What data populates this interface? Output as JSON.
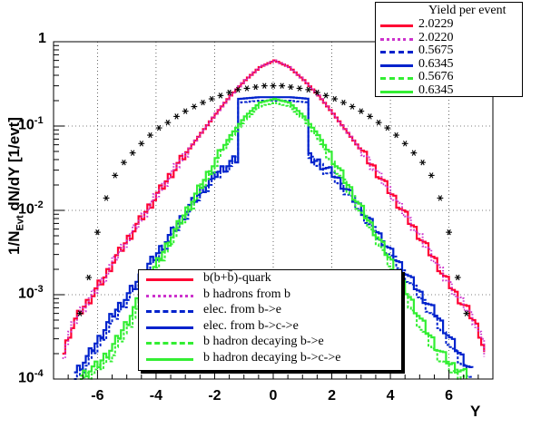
{
  "chart_data": {
    "type": "line",
    "xlabel": "Y",
    "ylabel_main": "1/N",
    "ylabel_sub": "Evt",
    "ylabel_rest": " dN/dY [1/evt]",
    "xlim": [
      -7.5,
      7.5
    ],
    "ylim": [
      0.0001,
      1
    ],
    "yscale": "log",
    "grid": true,
    "x_ticks": [
      "-6",
      "-4",
      "-2",
      "0",
      "2",
      "4",
      "6"
    ],
    "x_tick_values": [
      -6,
      -4,
      -2,
      0,
      2,
      4,
      6
    ],
    "y_ticks": [
      {
        "base": "10",
        "exp": "-4",
        "value": 0.0001
      },
      {
        "base": "10",
        "exp": "-3",
        "value": 0.001
      },
      {
        "base": "10",
        "exp": "-2",
        "value": 0.01
      },
      {
        "base": "10",
        "exp": "-1",
        "value": 0.1
      },
      {
        "base": "1",
        "exp": "",
        "value": 1
      }
    ],
    "yield_legend": {
      "title": "Yield per event",
      "entries": [
        {
          "value": "2.0229",
          "color": "#ff0033",
          "style": "solid"
        },
        {
          "value": "2.0220",
          "color": "#cc33cc",
          "style": "dotted"
        },
        {
          "value": "0.5675",
          "color": "#0022cc",
          "style": "dashed"
        },
        {
          "value": "0.6345",
          "color": "#0022cc",
          "style": "solid"
        },
        {
          "value": "0.5676",
          "color": "#33ee33",
          "style": "dashed"
        },
        {
          "value": "0.6345",
          "color": "#33ee33",
          "style": "solid"
        }
      ]
    },
    "series_legend": {
      "entries": [
        {
          "label": "b(b+b̄)-quark",
          "color": "#ff0033",
          "style": "solid"
        },
        {
          "label": "b hadrons from b",
          "color": "#cc33cc",
          "style": "dotted"
        },
        {
          "label": "elec. from b->e",
          "color": "#0022cc",
          "style": "dashed"
        },
        {
          "label": "elec. from b->c->e",
          "color": "#0022cc",
          "style": "solid"
        },
        {
          "label": "b hadron decaying b->e",
          "color": "#33ee33",
          "style": "dashed"
        },
        {
          "label": "b hadron decaying b->c->e",
          "color": "#33ee33",
          "style": "solid"
        }
      ]
    },
    "series": [
      {
        "id": "quark",
        "color": "#ff0033",
        "style": "solid",
        "x": [
          -7.2,
          -7.0,
          -6.8,
          -6.6,
          -6.4,
          -6.2,
          -6.0,
          -5.8,
          -5.5,
          -5.0,
          -4.5,
          -4.0,
          -3.5,
          -3.0,
          -2.5,
          -2.0,
          -1.5,
          -1.0,
          -0.5,
          0,
          0.5,
          1.0,
          1.5,
          2.0,
          2.5,
          3.0,
          3.5,
          4.0,
          4.5,
          5.0,
          5.5,
          5.8,
          6.0,
          6.2,
          6.4,
          6.6,
          6.8,
          7.0,
          7.2
        ],
        "y": [
          0.0002,
          0.00035,
          0.0005,
          0.00065,
          0.0008,
          0.001,
          0.0013,
          0.0016,
          0.0025,
          0.0046,
          0.0085,
          0.0155,
          0.028,
          0.049,
          0.083,
          0.14,
          0.23,
          0.35,
          0.5,
          0.6,
          0.5,
          0.35,
          0.23,
          0.14,
          0.083,
          0.049,
          0.028,
          0.0155,
          0.0085,
          0.0046,
          0.0025,
          0.0016,
          0.0013,
          0.001,
          0.0008,
          0.00065,
          0.0005,
          0.00035,
          0.0002
        ]
      },
      {
        "id": "hadrons",
        "color": "#cc33cc",
        "style": "dotted",
        "x": [
          -7.2,
          -7.0,
          -6.8,
          -6.6,
          -6.4,
          -6.2,
          -6.0,
          -5.8,
          -5.5,
          -5.0,
          -4.5,
          -4.0,
          -3.5,
          -3.0,
          -2.5,
          -2.0,
          -1.5,
          -1.0,
          -0.5,
          0,
          0.5,
          1.0,
          1.5,
          2.0,
          2.5,
          3.0,
          3.5,
          4.0,
          4.5,
          5.0,
          5.5,
          5.8,
          6.0,
          6.2,
          6.4,
          6.6,
          6.8,
          7.0,
          7.2
        ],
        "y": [
          0.0002,
          0.00035,
          0.0005,
          0.00065,
          0.0008,
          0.001,
          0.0013,
          0.0016,
          0.0025,
          0.0046,
          0.0085,
          0.0155,
          0.028,
          0.049,
          0.083,
          0.14,
          0.23,
          0.35,
          0.5,
          0.6,
          0.5,
          0.35,
          0.23,
          0.14,
          0.083,
          0.049,
          0.028,
          0.0155,
          0.0085,
          0.0046,
          0.0025,
          0.0016,
          0.0013,
          0.001,
          0.0008,
          0.00065,
          0.0005,
          0.00035,
          0.0002
        ]
      },
      {
        "id": "e_be",
        "color": "#0022cc",
        "style": "dashed",
        "x": [
          -6.8,
          -6.4,
          -6.0,
          -5.5,
          -5.0,
          -4.5,
          -4.0,
          -3.5,
          -3.0,
          -2.5,
          -2.0,
          -1.5,
          -1.2,
          -1.2,
          -0.5,
          0,
          0.5,
          1.2,
          1.2,
          1.5,
          2.0,
          2.5,
          3.0,
          3.5,
          4.0,
          4.5,
          5.0,
          5.5,
          6.0,
          6.4,
          6.8
        ],
        "y": [
          0.0001,
          0.00015,
          0.00025,
          0.0005,
          0.0009,
          0.0016,
          0.0028,
          0.005,
          0.009,
          0.016,
          0.025,
          0.035,
          0.04,
          0.19,
          0.2,
          0.2,
          0.2,
          0.19,
          0.04,
          0.035,
          0.025,
          0.016,
          0.009,
          0.005,
          0.0028,
          0.0016,
          0.0009,
          0.0005,
          0.00025,
          0.00015,
          0.0001
        ]
      },
      {
        "id": "e_bce",
        "color": "#0022cc",
        "style": "solid",
        "x": [
          -6.8,
          -6.4,
          -6.0,
          -5.5,
          -5.0,
          -4.5,
          -4.0,
          -3.5,
          -3.0,
          -2.5,
          -2.0,
          -1.5,
          -1.2,
          -1.2,
          -0.5,
          0,
          0.5,
          1.2,
          1.2,
          1.5,
          2.0,
          2.5,
          3.0,
          3.5,
          4.0,
          4.5,
          5.0,
          5.5,
          6.0,
          6.4,
          6.8
        ],
        "y": [
          0.00012,
          0.00018,
          0.0003,
          0.0006,
          0.001,
          0.0018,
          0.0031,
          0.0055,
          0.01,
          0.017,
          0.027,
          0.037,
          0.042,
          0.21,
          0.22,
          0.22,
          0.22,
          0.21,
          0.042,
          0.037,
          0.027,
          0.017,
          0.01,
          0.0055,
          0.0031,
          0.0018,
          0.001,
          0.0006,
          0.0003,
          0.00018,
          0.00012
        ]
      },
      {
        "id": "h_be",
        "color": "#33ee33",
        "style": "dashed",
        "x": [
          -6.6,
          -6.0,
          -5.5,
          -5.0,
          -4.5,
          -4.0,
          -3.5,
          -3.0,
          -2.5,
          -2.0,
          -1.5,
          -1.0,
          -0.5,
          0,
          0.5,
          1.0,
          1.5,
          2.0,
          2.5,
          3.0,
          3.5,
          4.0,
          4.5,
          5.0,
          5.5,
          6.0,
          6.6
        ],
        "y": [
          0.0001,
          0.00013,
          0.0002,
          0.0004,
          0.0009,
          0.002,
          0.0045,
          0.009,
          0.018,
          0.035,
          0.07,
          0.12,
          0.17,
          0.19,
          0.17,
          0.12,
          0.07,
          0.035,
          0.018,
          0.009,
          0.0045,
          0.002,
          0.0009,
          0.0004,
          0.0002,
          0.00013,
          0.0001
        ]
      },
      {
        "id": "h_bce",
        "color": "#33ee33",
        "style": "solid",
        "x": [
          -6.6,
          -6.0,
          -5.5,
          -5.0,
          -4.5,
          -4.0,
          -3.5,
          -3.0,
          -2.5,
          -2.0,
          -1.5,
          -1.0,
          -0.5,
          0,
          0.5,
          1.0,
          1.5,
          2.0,
          2.5,
          3.0,
          3.5,
          4.0,
          4.5,
          5.0,
          5.5,
          6.0,
          6.6
        ],
        "y": [
          0.00011,
          0.00015,
          0.00025,
          0.0005,
          0.0011,
          0.0024,
          0.005,
          0.01,
          0.02,
          0.04,
          0.078,
          0.13,
          0.19,
          0.21,
          0.19,
          0.13,
          0.078,
          0.04,
          0.02,
          0.01,
          0.005,
          0.0024,
          0.0011,
          0.0005,
          0.00025,
          0.00015,
          0.00011
        ]
      },
      {
        "id": "stars",
        "color": "#000000",
        "style": "markers",
        "x": [
          -6.6,
          -6.3,
          -6.0,
          -5.7,
          -5.4,
          -5.1,
          -4.8,
          -4.5,
          -4.2,
          -3.9,
          -3.6,
          -3.3,
          -3.0,
          -2.7,
          -2.4,
          -2.1,
          -1.8,
          -1.5,
          -1.2,
          -0.9,
          -0.6,
          -0.3,
          0,
          0.3,
          0.6,
          0.9,
          1.2,
          1.5,
          1.8,
          2.1,
          2.4,
          2.7,
          3.0,
          3.3,
          3.6,
          3.9,
          4.2,
          4.5,
          4.8,
          5.1,
          5.4,
          5.7,
          6.0,
          6.3,
          6.6
        ],
        "y": [
          0.0006,
          0.0016,
          0.0055,
          0.014,
          0.026,
          0.037,
          0.048,
          0.062,
          0.078,
          0.095,
          0.11,
          0.13,
          0.15,
          0.17,
          0.19,
          0.21,
          0.23,
          0.25,
          0.27,
          0.28,
          0.29,
          0.3,
          0.3,
          0.3,
          0.29,
          0.28,
          0.27,
          0.25,
          0.23,
          0.21,
          0.19,
          0.17,
          0.15,
          0.13,
          0.11,
          0.095,
          0.078,
          0.062,
          0.048,
          0.037,
          0.026,
          0.014,
          0.0055,
          0.0016,
          0.0006
        ]
      }
    ]
  }
}
